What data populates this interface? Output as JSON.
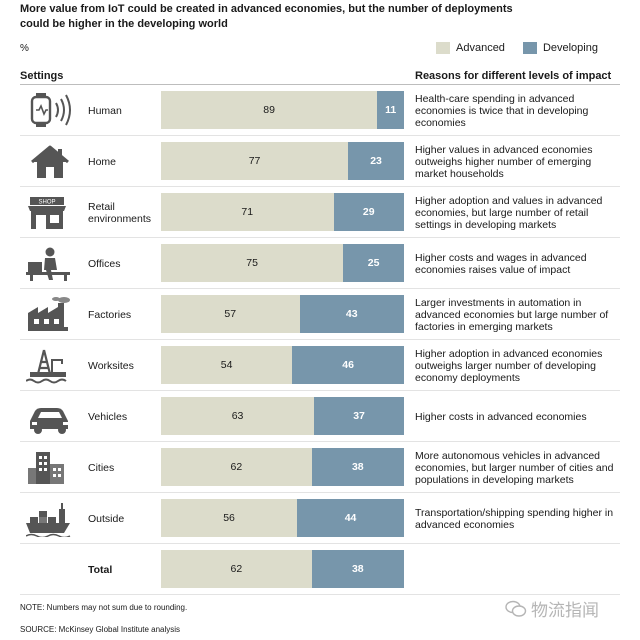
{
  "header": {
    "title": "More value from IoT could be created in advanced economies, but the number of deployments could be higher in the developing world",
    "unit": "%"
  },
  "legend": {
    "advanced": "Advanced",
    "developing": "Developing"
  },
  "columns": {
    "settings": "Settings",
    "reasons": "Reasons for different levels of impact"
  },
  "colors": {
    "advanced": "#dcdccb",
    "developing": "#7796ab"
  },
  "chart_data": {
    "type": "bar",
    "orientation": "horizontal",
    "stacked": true,
    "categories": [
      "Human",
      "Home",
      "Retail environments",
      "Offices",
      "Factories",
      "Worksites",
      "Vehicles",
      "Cities",
      "Outside",
      "Total"
    ],
    "series": [
      {
        "name": "Advanced",
        "values": [
          89,
          77,
          71,
          75,
          57,
          54,
          63,
          62,
          56,
          62
        ]
      },
      {
        "name": "Developing",
        "values": [
          11,
          23,
          29,
          25,
          43,
          46,
          37,
          38,
          44,
          38
        ]
      }
    ]
  },
  "rows": [
    {
      "label": "Human",
      "icon": "wearable-icon",
      "reason": "Health-care spending in advanced economies is twice that in developing economies"
    },
    {
      "label": "Home",
      "icon": "house-icon",
      "reason": "Higher values in advanced economies outweighs higher number of emerging market households"
    },
    {
      "label": "Retail environments",
      "icon": "shop-icon",
      "reason": "Higher adoption and values in advanced economies, but large number of retail settings in developing markets"
    },
    {
      "label": "Offices",
      "icon": "office-worker-icon",
      "reason": "Higher costs and wages in advanced economies raises value of impact"
    },
    {
      "label": "Factories",
      "icon": "factory-icon",
      "reason": "Larger investments in automation in advanced economies  but large number of factories in emerging markets"
    },
    {
      "label": "Worksites",
      "icon": "oil-rig-icon",
      "reason": "Higher adoption in advanced economies outweighs larger number of developing economy deployments"
    },
    {
      "label": "Vehicles",
      "icon": "car-icon",
      "reason": "Higher costs in advanced economies"
    },
    {
      "label": "Cities",
      "icon": "city-icon",
      "reason": "More autonomous vehicles in advanced economies, but larger number of cities and populations in developing markets"
    },
    {
      "label": "Outside",
      "icon": "cargo-ship-icon",
      "reason": "Transportation/shipping spending higher in advanced economies"
    },
    {
      "label": "Total",
      "icon": "",
      "reason": ""
    }
  ],
  "icon_text": {
    "shop_sign": "SHOP"
  },
  "footer": {
    "note": "NOTE: Numbers may not sum due to rounding.",
    "source": "SOURCE:  McKinsey Global Institute analysis",
    "watermark": "物流指闻"
  }
}
